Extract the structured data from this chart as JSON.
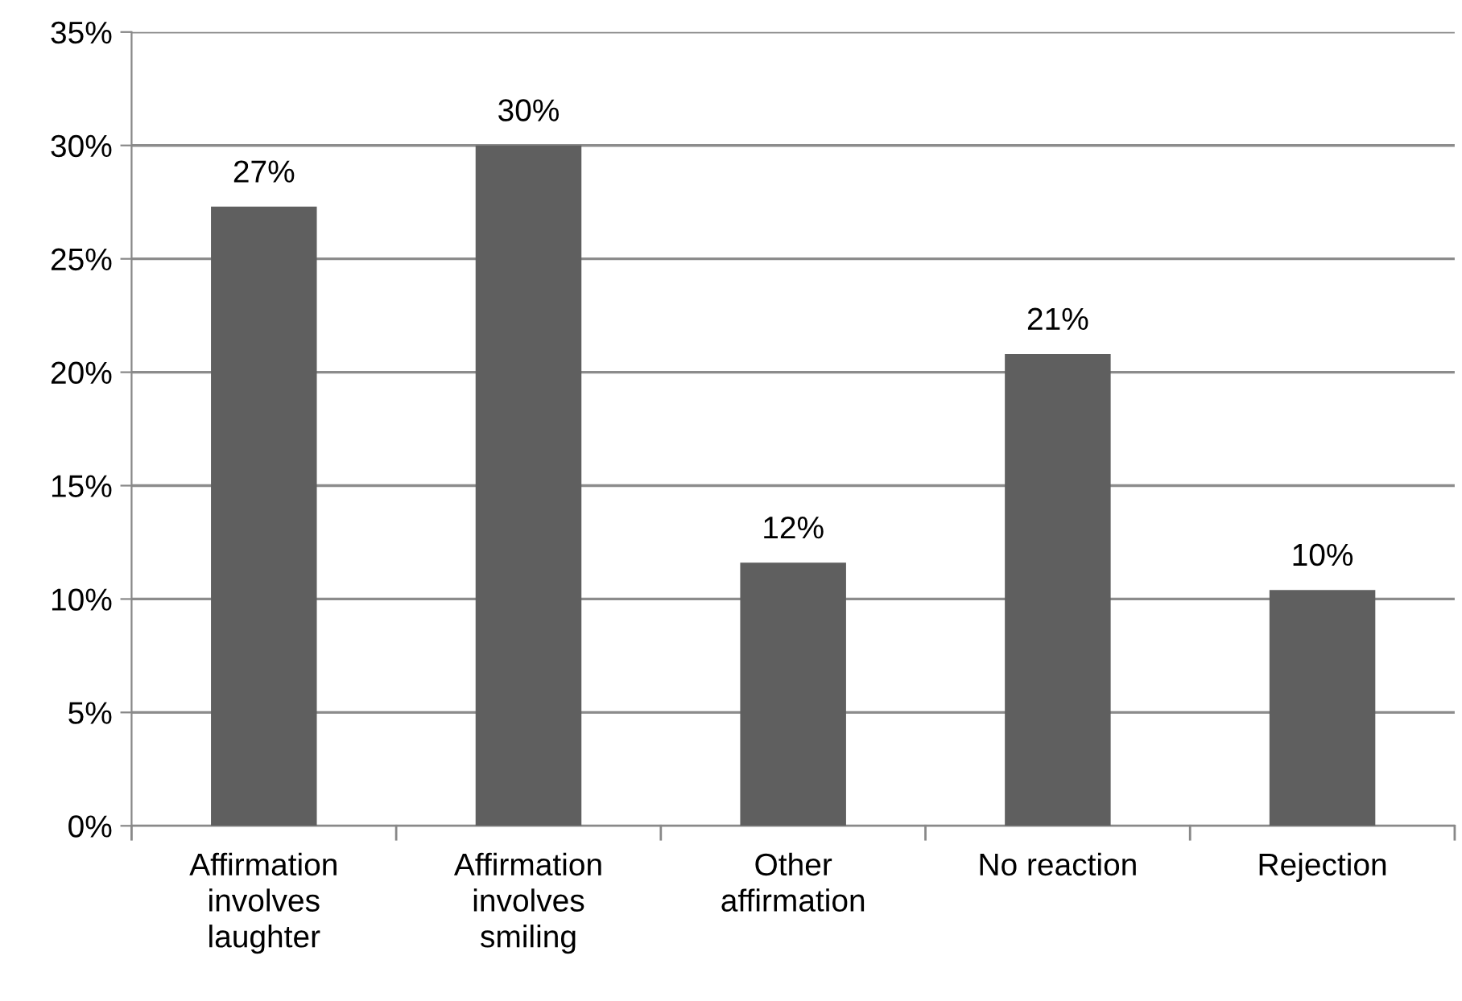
{
  "chart_data": {
    "type": "bar",
    "categories": [
      "Affirmation\ninvolves\nlaughter",
      "Affirmation\ninvolves\nsmiling",
      "Other\naffirmation",
      "No reaction",
      "Rejection"
    ],
    "values": [
      27.3,
      30.0,
      11.6,
      20.8,
      10.4
    ],
    "value_labels": [
      "27%",
      "30%",
      "12%",
      "21%",
      "10%"
    ],
    "color": "#5f5f5f",
    "ylim": [
      0,
      35
    ],
    "yticks": [
      {
        "value": 0,
        "label": "0%"
      },
      {
        "value": 5,
        "label": "5%"
      },
      {
        "value": 10,
        "label": "10%"
      },
      {
        "value": 15,
        "label": "15%"
      },
      {
        "value": 20,
        "label": "20%"
      },
      {
        "value": 25,
        "label": "25%"
      },
      {
        "value": 30,
        "label": "30%"
      },
      {
        "value": 35,
        "label": "35%"
      }
    ],
    "grid": "y",
    "legend": false
  }
}
